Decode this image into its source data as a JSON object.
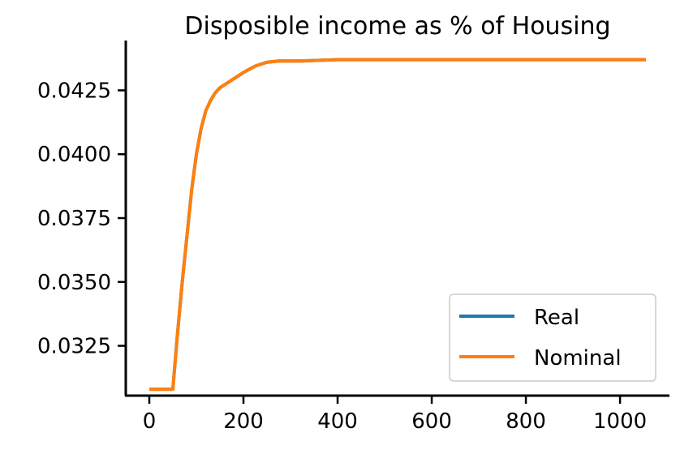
{
  "chart_data": {
    "type": "line",
    "title": "Disposible income as % of Housing",
    "xlabel": "",
    "ylabel": "",
    "xlim": [
      -50,
      1105
    ],
    "ylim": [
      0.03055,
      0.04445
    ],
    "x_ticks": [
      0,
      200,
      400,
      600,
      800,
      1000
    ],
    "x_tick_labels": [
      "0",
      "200",
      "400",
      "600",
      "800",
      "1000"
    ],
    "y_ticks": [
      0.0325,
      0.035,
      0.0375,
      0.04,
      0.0425
    ],
    "y_tick_labels": [
      "0.0325",
      "0.0350",
      "0.0375",
      "0.0400",
      "0.0425"
    ],
    "grid": false,
    "legend_position": "lower-right",
    "series": [
      {
        "name": "Real",
        "color": "#1f77b4",
        "x": [
          0,
          50,
          60,
          70,
          80,
          90,
          100,
          110,
          120,
          130,
          140,
          150,
          175,
          200,
          225,
          250,
          275,
          300,
          325,
          350,
          400,
          450,
          500,
          600,
          700,
          800,
          900,
          1000,
          1055
        ],
        "y": [
          0.0308,
          0.0308,
          0.033,
          0.035,
          0.0368,
          0.0386,
          0.04,
          0.041,
          0.0417,
          0.0421,
          0.0424,
          0.0426,
          0.0429,
          0.0432,
          0.04345,
          0.0436,
          0.04365,
          0.04365,
          0.04365,
          0.04367,
          0.0437,
          0.0437,
          0.0437,
          0.0437,
          0.0437,
          0.0437,
          0.0437,
          0.0437,
          0.0437
        ]
      },
      {
        "name": "Nominal",
        "color": "#ff7f0e",
        "x": [
          0,
          50,
          60,
          70,
          80,
          90,
          100,
          110,
          120,
          130,
          140,
          150,
          175,
          200,
          225,
          250,
          275,
          300,
          325,
          350,
          400,
          450,
          500,
          600,
          700,
          800,
          900,
          1000,
          1055
        ],
        "y": [
          0.0308,
          0.0308,
          0.033,
          0.035,
          0.0368,
          0.0386,
          0.04,
          0.041,
          0.0417,
          0.0421,
          0.0424,
          0.0426,
          0.0429,
          0.0432,
          0.04345,
          0.0436,
          0.04365,
          0.04365,
          0.04365,
          0.04367,
          0.0437,
          0.0437,
          0.0437,
          0.0437,
          0.0437,
          0.0437,
          0.0437,
          0.0437,
          0.0437
        ]
      }
    ]
  }
}
